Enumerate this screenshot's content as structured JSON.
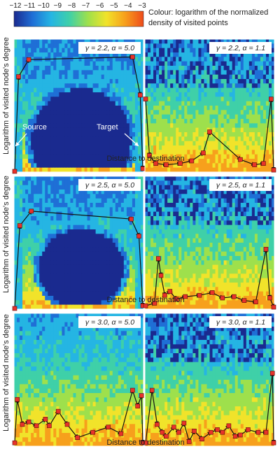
{
  "colorbar": {
    "ticks": [
      "−12",
      "−11",
      "−10",
      "−9",
      "−8",
      "−7",
      "−6",
      "−5",
      "−4",
      "−3"
    ],
    "caption_line1": "Colour: logarithm of the normalized",
    "caption_line2": "density of visited points",
    "colors": [
      "#1a2a8f",
      "#1f6fd6",
      "#25b5e3",
      "#3fd0a8",
      "#9ee04c",
      "#f1e32a",
      "#f7a01c",
      "#ee4b1c"
    ]
  },
  "ylabel": "Logarithm of visited node's degree",
  "xlabel": "Distance to destination",
  "annot": {
    "source": "Source",
    "target": "Target"
  },
  "chart_data": [
    {
      "type": "heatmap",
      "title": "γ = 2.2,  α = 5.0",
      "row": 0,
      "col": 0,
      "dense": false,
      "path": [
        [
          0.0,
          0.0
        ],
        [
          0.03,
          0.72
        ],
        [
          0.11,
          0.85
        ],
        [
          0.92,
          0.87
        ],
        [
          0.98,
          0.58
        ],
        [
          1.0,
          0.02
        ]
      ]
    },
    {
      "type": "heatmap",
      "title": "γ = 2.2,  α = 1.1",
      "row": 0,
      "col": 1,
      "dense": true,
      "path": [
        [
          0.0,
          0.55
        ],
        [
          0.03,
          0.12
        ],
        [
          0.08,
          0.06
        ],
        [
          0.16,
          0.05
        ],
        [
          0.27,
          0.06
        ],
        [
          0.36,
          0.08
        ],
        [
          0.45,
          0.14
        ],
        [
          0.5,
          0.3
        ],
        [
          0.74,
          0.09
        ],
        [
          0.85,
          0.05
        ],
        [
          0.92,
          0.06
        ],
        [
          0.98,
          0.55
        ],
        [
          1.0,
          0.01
        ]
      ]
    },
    {
      "type": "heatmap",
      "title": "γ = 2.5,  α = 5.0",
      "row": 1,
      "col": 0,
      "dense": false,
      "path": [
        [
          0.0,
          0.0
        ],
        [
          0.04,
          0.63
        ],
        [
          0.13,
          0.74
        ],
        [
          0.91,
          0.68
        ],
        [
          0.97,
          0.55
        ],
        [
          1.0,
          0.02
        ]
      ]
    },
    {
      "type": "heatmap",
      "title": "γ = 2.5,  α = 1.1",
      "row": 1,
      "col": 1,
      "dense": true,
      "path": [
        [
          0.0,
          0.02
        ],
        [
          0.07,
          0.04
        ],
        [
          0.1,
          0.38
        ],
        [
          0.12,
          0.25
        ],
        [
          0.15,
          0.1
        ],
        [
          0.19,
          0.13
        ],
        [
          0.24,
          0.07
        ],
        [
          0.31,
          0.09
        ],
        [
          0.42,
          0.1
        ],
        [
          0.52,
          0.12
        ],
        [
          0.6,
          0.08
        ],
        [
          0.69,
          0.09
        ],
        [
          0.77,
          0.06
        ],
        [
          0.86,
          0.05
        ],
        [
          0.94,
          0.45
        ],
        [
          0.97,
          0.08
        ],
        [
          1.0,
          0.01
        ]
      ]
    },
    {
      "type": "heatmap",
      "title": "γ = 3.0,  α = 5.0",
      "row": 2,
      "col": 0,
      "dense": true,
      "path": [
        [
          0.0,
          0.02
        ],
        [
          0.02,
          0.35
        ],
        [
          0.06,
          0.16
        ],
        [
          0.11,
          0.18
        ],
        [
          0.17,
          0.15
        ],
        [
          0.24,
          0.2
        ],
        [
          0.27,
          0.15
        ],
        [
          0.34,
          0.26
        ],
        [
          0.41,
          0.16
        ],
        [
          0.49,
          0.06
        ],
        [
          0.61,
          0.1
        ],
        [
          0.73,
          0.14
        ],
        [
          0.83,
          0.09
        ],
        [
          0.92,
          0.42
        ],
        [
          0.96,
          0.3
        ],
        [
          0.99,
          0.38
        ],
        [
          1.0,
          0.02
        ]
      ]
    },
    {
      "type": "heatmap",
      "title": "γ = 3.0,  α = 1.1",
      "row": 2,
      "col": 1,
      "dense": true,
      "path": [
        [
          0.0,
          0.02
        ],
        [
          0.05,
          0.42
        ],
        [
          0.09,
          0.16
        ],
        [
          0.13,
          0.1
        ],
        [
          0.16,
          0.07
        ],
        [
          0.22,
          0.14
        ],
        [
          0.26,
          0.1
        ],
        [
          0.3,
          0.17
        ],
        [
          0.34,
          0.03
        ],
        [
          0.38,
          0.11
        ],
        [
          0.44,
          0.05
        ],
        [
          0.51,
          0.1
        ],
        [
          0.56,
          0.12
        ],
        [
          0.6,
          0.1
        ],
        [
          0.65,
          0.15
        ],
        [
          0.7,
          0.07
        ],
        [
          0.74,
          0.08
        ],
        [
          0.8,
          0.12
        ],
        [
          0.88,
          0.1
        ],
        [
          0.94,
          0.1
        ],
        [
          0.99,
          0.55
        ],
        [
          1.0,
          0.02
        ]
      ]
    }
  ]
}
